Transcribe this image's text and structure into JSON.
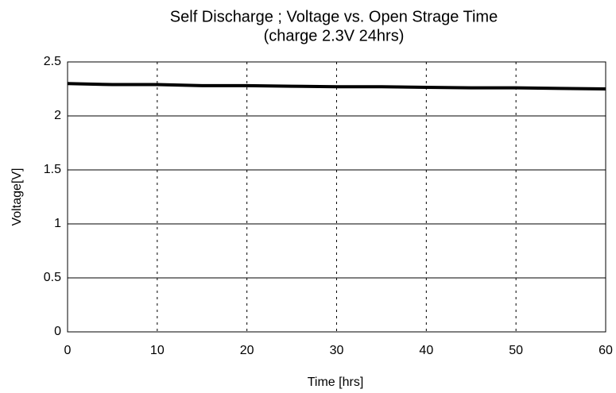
{
  "chart_data": {
    "type": "line",
    "title": "Self Discharge ; Voltage vs. Open Strage Time",
    "subtitle": "(charge 2.3V 24hrs)",
    "x_label": "Time [hrs]",
    "y_label": "Voltage[V]",
    "x": [
      0,
      5,
      10,
      15,
      20,
      25,
      30,
      35,
      40,
      45,
      50,
      55,
      60
    ],
    "series": [
      {
        "name": "Voltage",
        "color": "#000000",
        "values": [
          2.3,
          2.29,
          2.29,
          2.28,
          2.28,
          2.275,
          2.27,
          2.27,
          2.265,
          2.26,
          2.26,
          2.255,
          2.25
        ]
      }
    ],
    "xlim": [
      0,
      60
    ],
    "xticks": [
      0,
      10,
      20,
      30,
      40,
      50,
      60
    ],
    "ylim": [
      0,
      2.5
    ],
    "yticks": [
      0,
      0.5,
      1,
      1.5,
      2,
      2.5
    ],
    "grid": true,
    "legend": false
  }
}
